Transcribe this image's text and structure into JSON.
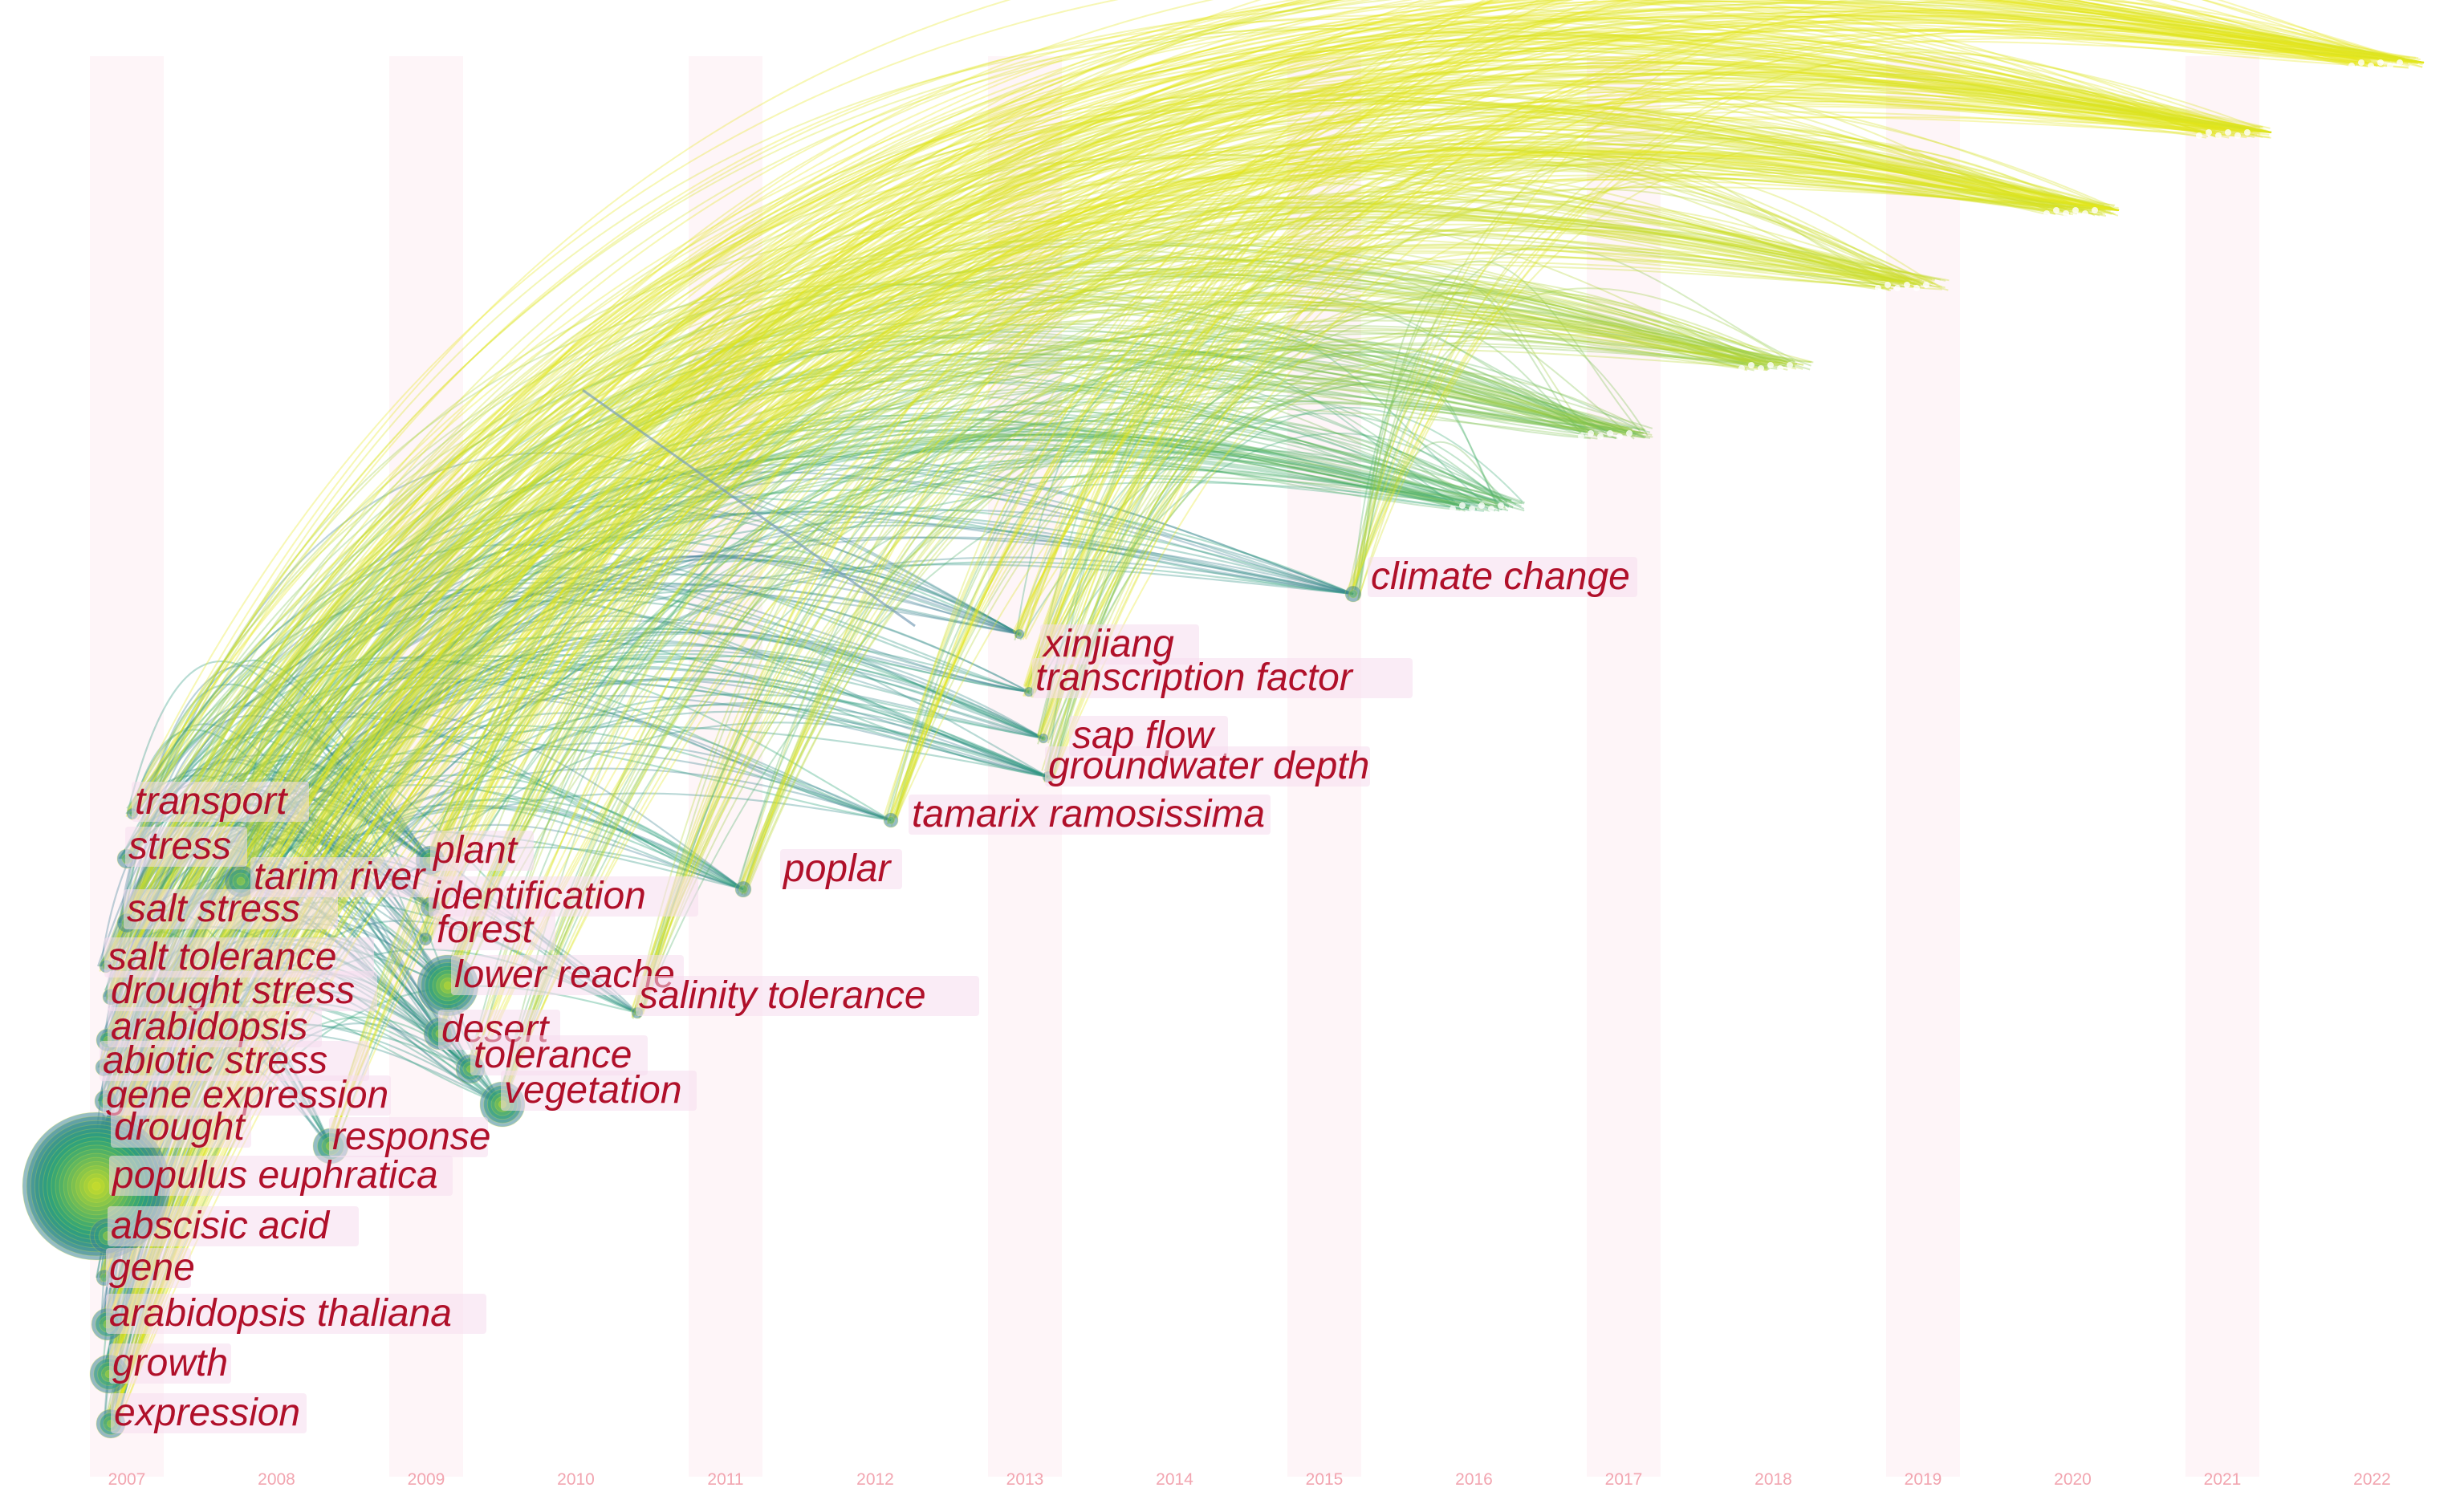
{
  "timeline": {
    "years": [
      "2007",
      "2008",
      "2009",
      "2010",
      "2011",
      "2012",
      "2013",
      "2014",
      "2015",
      "2016",
      "2017",
      "2018",
      "2019",
      "2020",
      "2021",
      "2022"
    ]
  },
  "keywords": [
    {
      "label": "transport",
      "year": 2007
    },
    {
      "label": "stress",
      "year": 2007
    },
    {
      "label": "tarim river",
      "year": 2008
    },
    {
      "label": "salt stress",
      "year": 2007
    },
    {
      "label": "salt tolerance",
      "year": 2007
    },
    {
      "label": "drought stress",
      "year": 2007
    },
    {
      "label": "arabidopsis",
      "year": 2007
    },
    {
      "label": "abiotic stress",
      "year": 2007
    },
    {
      "label": "gene expression",
      "year": 2007
    },
    {
      "label": "drought",
      "year": 2007
    },
    {
      "label": "populus euphratica",
      "year": 2007
    },
    {
      "label": "abscisic acid",
      "year": 2007
    },
    {
      "label": "gene",
      "year": 2007
    },
    {
      "label": "arabidopsis thaliana",
      "year": 2007
    },
    {
      "label": "growth",
      "year": 2007
    },
    {
      "label": "expression",
      "year": 2007
    },
    {
      "label": "plant",
      "year": 2009
    },
    {
      "label": "identification",
      "year": 2009
    },
    {
      "label": "forest",
      "year": 2009
    },
    {
      "label": "lower reache",
      "year": 2009
    },
    {
      "label": "desert",
      "year": 2009
    },
    {
      "label": "tolerance",
      "year": 2009
    },
    {
      "label": "vegetation",
      "year": 2009
    },
    {
      "label": "response",
      "year": 2008
    },
    {
      "label": "salinity tolerance",
      "year": 2010
    },
    {
      "label": "poplar",
      "year": 2011
    },
    {
      "label": "tamarix ramosissima",
      "year": 2012
    },
    {
      "label": "groundwater depth",
      "year": 2013
    },
    {
      "label": "sap flow",
      "year": 2013
    },
    {
      "label": "transcription factor",
      "year": 2013
    },
    {
      "label": "xinjiang",
      "year": 2013
    },
    {
      "label": "climate change",
      "year": 2015
    }
  ],
  "colors": {
    "label_text": "#b0102a",
    "label_highlight": "#f6dcef",
    "year_text": "#f2a5b0",
    "year_band": "#fdf2f5",
    "early_link": "#4f6fa8",
    "mid_link": "#2aa37a",
    "late_link": "#c8dd2a",
    "latest_link": "#e8e81a"
  }
}
